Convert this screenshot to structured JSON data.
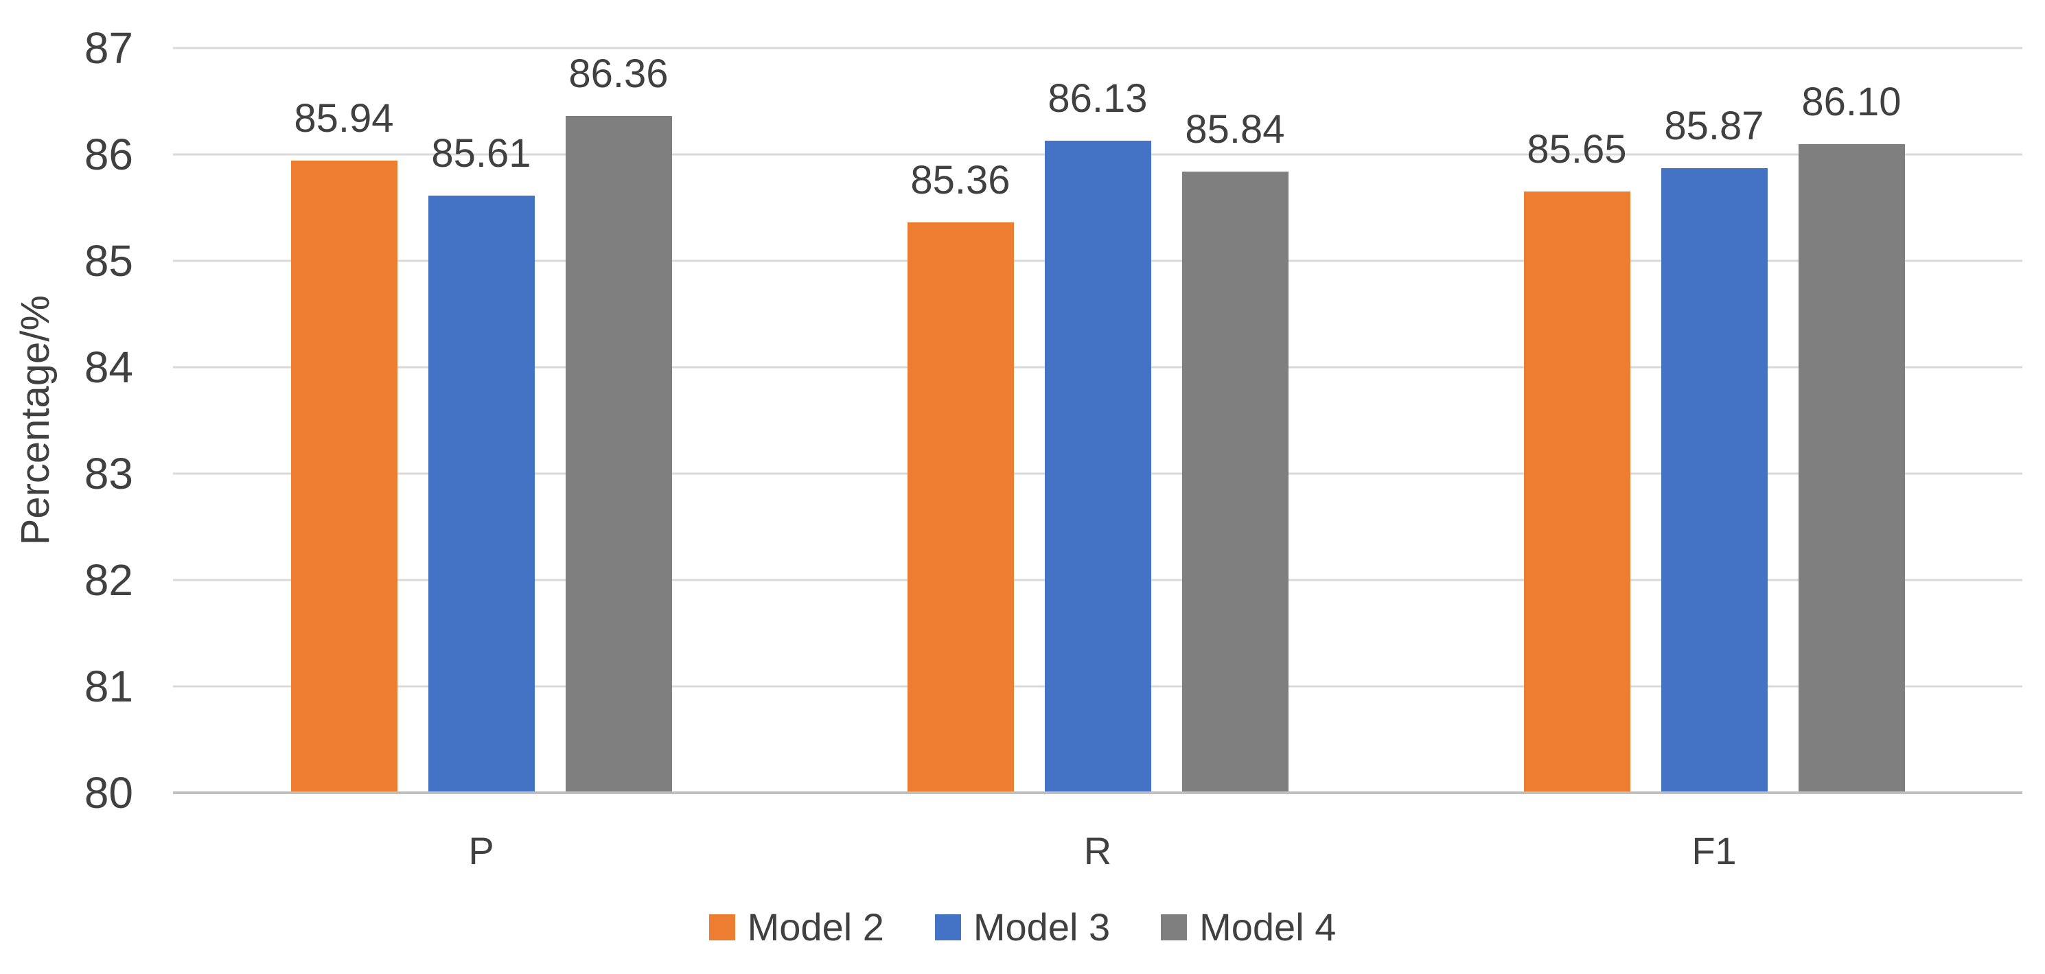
{
  "chart_data": {
    "type": "bar",
    "title": "",
    "xlabel": "",
    "ylabel": "Percentage/%",
    "ylim": [
      80,
      87
    ],
    "yticks": [
      80,
      81,
      82,
      83,
      84,
      85,
      86,
      87
    ],
    "grid": true,
    "legend_position": "bottom-center",
    "categories": [
      "P",
      "R",
      "F1"
    ],
    "series": [
      {
        "name": "Model 2",
        "color": "#ED7D31",
        "values": [
          85.94,
          85.36,
          85.65
        ],
        "labels": [
          "85.94",
          "85.36",
          "85.65"
        ]
      },
      {
        "name": "Model 3",
        "color": "#4472C4",
        "values": [
          85.61,
          86.13,
          85.87
        ],
        "labels": [
          "85.61",
          "86.13",
          "85.87"
        ]
      },
      {
        "name": "Model 4",
        "color": "#7F7F7F",
        "values": [
          86.36,
          85.84,
          86.1
        ],
        "labels": [
          "86.36",
          "85.84",
          "86.10"
        ]
      }
    ],
    "colors": {
      "background": "#FFFFFF",
      "gridline": "#D9D9D9",
      "axis_line": "#BFBFBF",
      "text": "#404040"
    }
  }
}
